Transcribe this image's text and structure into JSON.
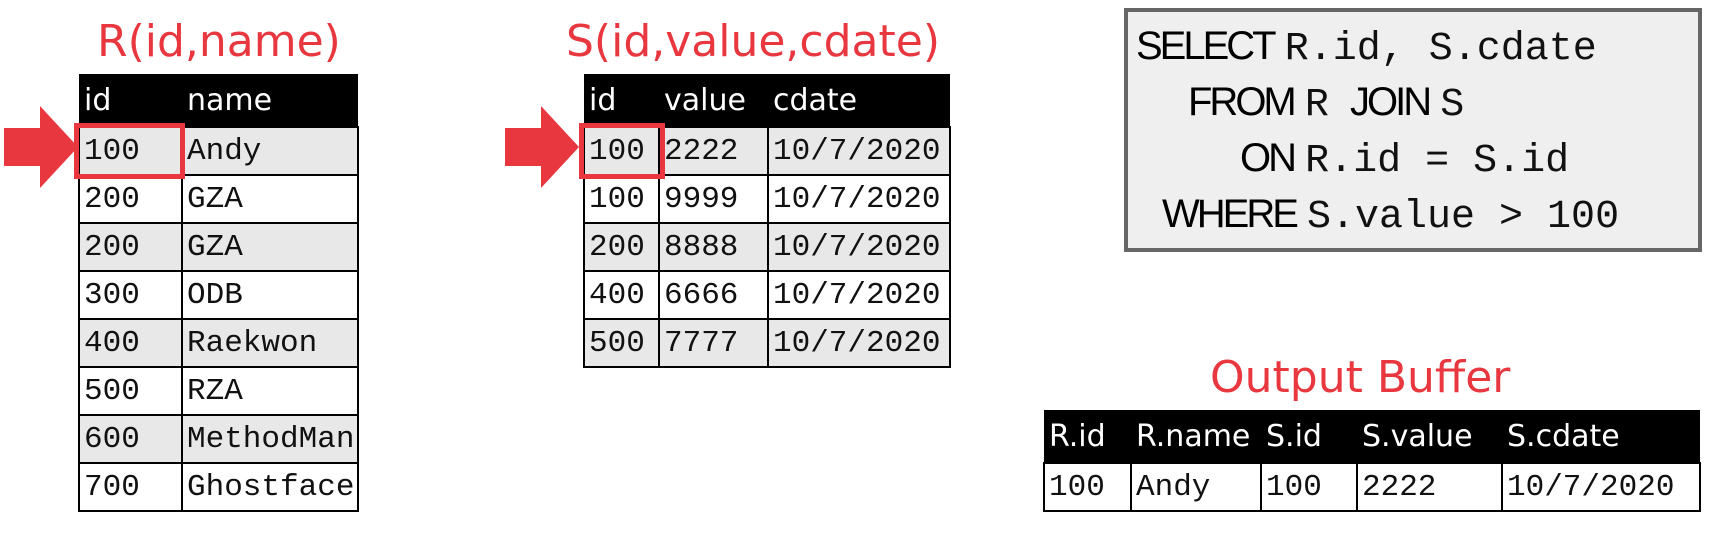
{
  "r_table": {
    "title": "R(id,name)",
    "headers": [
      "id",
      "name"
    ],
    "rows": [
      [
        "100",
        "Andy"
      ],
      [
        "200",
        "GZA"
      ],
      [
        "200",
        "GZA"
      ],
      [
        "300",
        "ODB"
      ],
      [
        "400",
        "Raekwon"
      ],
      [
        "500",
        "RZA"
      ],
      [
        "600",
        "MethodMan"
      ],
      [
        "700",
        "Ghostface"
      ]
    ]
  },
  "s_table": {
    "title": "S(id,value,cdate)",
    "headers": [
      "id",
      "value",
      "cdate"
    ],
    "rows": [
      [
        "100",
        "2222",
        "10/7/2020"
      ],
      [
        "100",
        "9999",
        "10/7/2020"
      ],
      [
        "200",
        "8888",
        "10/7/2020"
      ],
      [
        "400",
        "6666",
        "10/7/2020"
      ],
      [
        "500",
        "7777",
        "10/7/2020"
      ]
    ]
  },
  "query": {
    "select_kw": "SELECT",
    "select_expr": "R.id, S.cdate",
    "from_kw": "FROM",
    "from_expr1": "R",
    "join_kw": "JOIN",
    "from_expr2": "S",
    "on_kw": "ON",
    "on_expr": "R.id = S.id",
    "where_kw": "WHERE",
    "where_expr": "S.value > 100"
  },
  "output": {
    "title": "Output Buffer",
    "headers": [
      "R.id",
      "R.name",
      "S.id",
      "S.value",
      "S.cdate"
    ],
    "rows": [
      [
        "100",
        "Andy",
        "100",
        "2222",
        "10/7/2020"
      ]
    ]
  },
  "colors": {
    "accent": "#e8373f",
    "header_bg": "#000000",
    "shade": "#e8e8e8",
    "sql_bg": "#efefef",
    "sql_border": "#666666"
  }
}
